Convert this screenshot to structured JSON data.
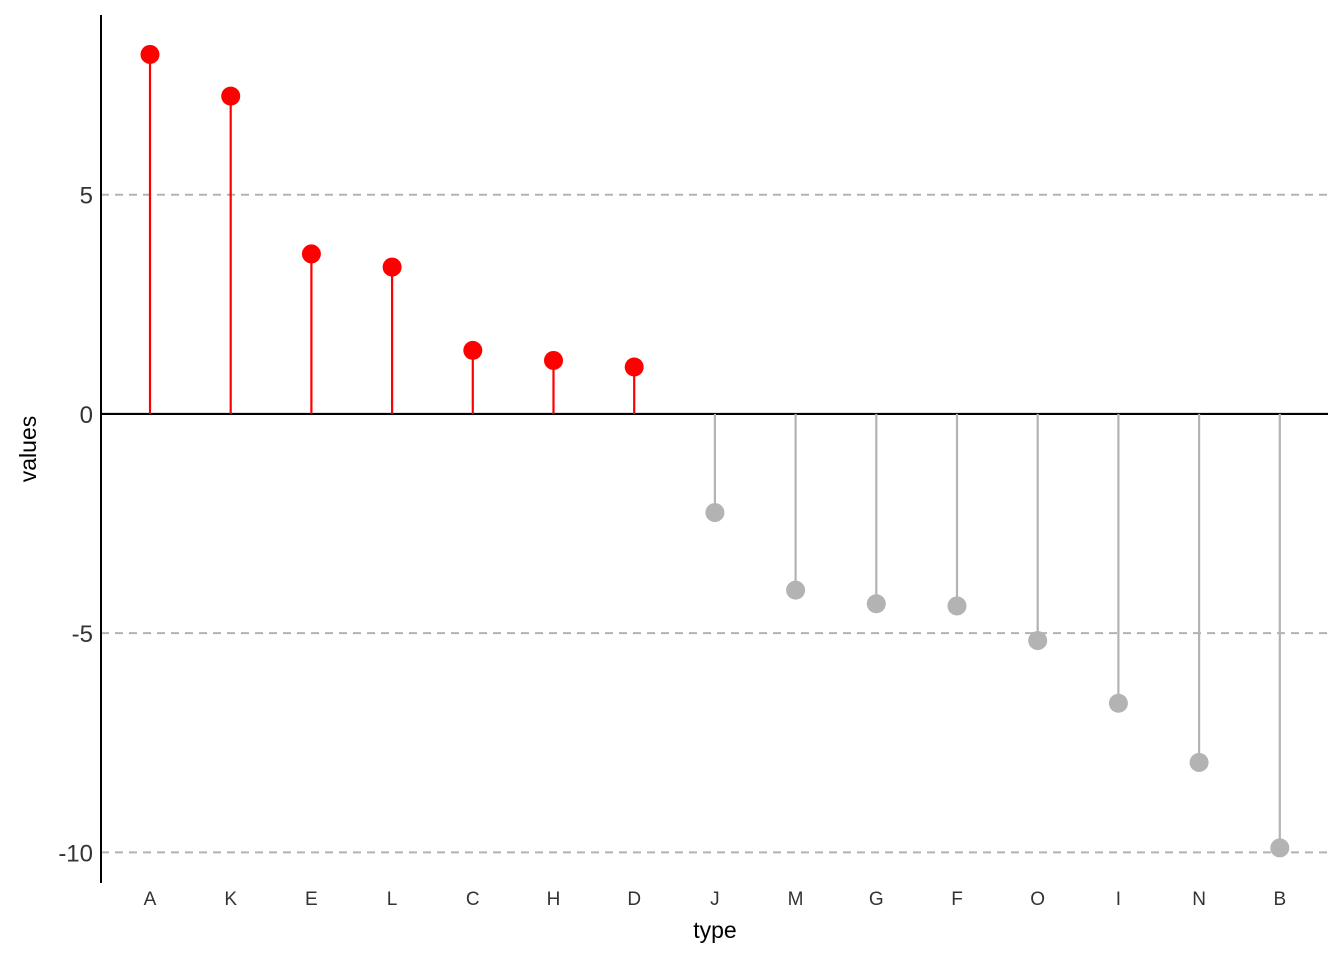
{
  "chart_data": {
    "type": "lollipop",
    "title": "",
    "xlabel": "type",
    "ylabel": "values",
    "categories": [
      "A",
      "K",
      "E",
      "L",
      "C",
      "H",
      "D",
      "J",
      "M",
      "G",
      "F",
      "O",
      "I",
      "N",
      "B"
    ],
    "values": [
      8.2,
      7.25,
      3.65,
      3.35,
      1.45,
      1.22,
      1.07,
      -2.25,
      -4.02,
      -4.33,
      -4.38,
      -5.17,
      -6.6,
      -7.95,
      -9.9
    ],
    "ylim": [
      -10.7,
      9.1
    ],
    "yticks": [
      5,
      0,
      -5,
      -10
    ],
    "ytick_labels": [
      "5",
      "0",
      "-5",
      "-10"
    ],
    "grid": "horizontal dashed at major ticks",
    "legend": "none",
    "colors": {
      "positive": "#ff0000",
      "negative": "#b3b3b3",
      "zero_line": "#000000",
      "grid": "#b3b3b3",
      "axis": "#000000"
    }
  }
}
